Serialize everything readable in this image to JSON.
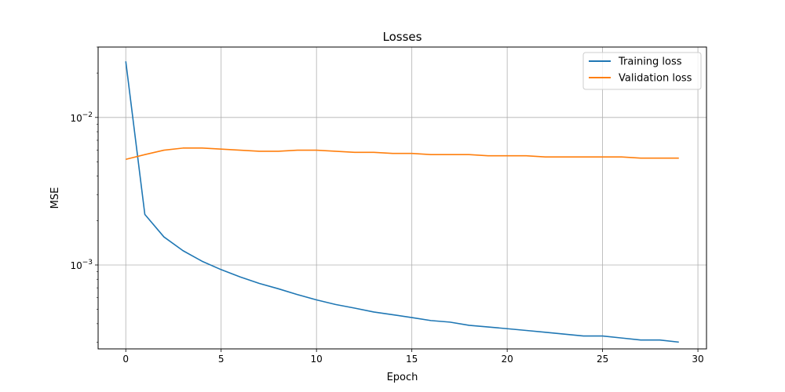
{
  "chart_data": {
    "type": "line",
    "title": "Losses",
    "xlabel": "Epoch",
    "ylabel": "MSE",
    "y_scale": "log",
    "xlim": [
      -1.45,
      30.45
    ],
    "ylim": [
      0.00027,
      0.03
    ],
    "grid": true,
    "legend_location": "top-right",
    "x_ticks": [
      0,
      5,
      10,
      15,
      20,
      25,
      30
    ],
    "x_tick_labels": [
      "0",
      "5",
      "10",
      "15",
      "20",
      "25",
      "30"
    ],
    "y_major_ticks": [
      0.001,
      0.01
    ],
    "y_major_tick_labels": [
      {
        "base": "10",
        "exp": "−3"
      },
      {
        "base": "10",
        "exp": "−2"
      }
    ],
    "x": [
      0,
      1,
      2,
      3,
      4,
      5,
      6,
      7,
      8,
      9,
      10,
      11,
      12,
      13,
      14,
      15,
      16,
      17,
      18,
      19,
      20,
      21,
      22,
      23,
      24,
      25,
      26,
      27,
      28,
      29
    ],
    "series": [
      {
        "name": "Training loss",
        "color": "#1f77b4",
        "values": [
          0.024,
          0.0022,
          0.00155,
          0.00125,
          0.00106,
          0.00093,
          0.00083,
          0.00075,
          0.00069,
          0.00063,
          0.00058,
          0.00054,
          0.00051,
          0.00048,
          0.00046,
          0.00044,
          0.00042,
          0.00041,
          0.00039,
          0.00038,
          0.00037,
          0.00036,
          0.00035,
          0.00034,
          0.00033,
          0.00033,
          0.00032,
          0.00031,
          0.00031,
          0.0003
        ]
      },
      {
        "name": "Validation loss",
        "color": "#ff7f0e",
        "values": [
          0.0052,
          0.0056,
          0.006,
          0.0062,
          0.0062,
          0.0061,
          0.006,
          0.0059,
          0.0059,
          0.006,
          0.006,
          0.0059,
          0.0058,
          0.0058,
          0.0057,
          0.0057,
          0.0056,
          0.0056,
          0.0056,
          0.0055,
          0.0055,
          0.0055,
          0.0054,
          0.0054,
          0.0054,
          0.0054,
          0.0054,
          0.0053,
          0.0053,
          0.0053
        ]
      }
    ]
  }
}
